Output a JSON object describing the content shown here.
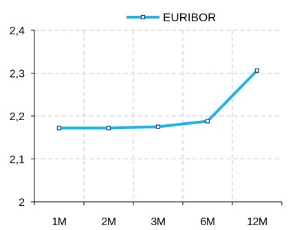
{
  "chart_data": {
    "type": "line",
    "categories": [
      "1M",
      "2M",
      "3M",
      "6M",
      "12M"
    ],
    "series": [
      {
        "name": "EURIBOR",
        "values": [
          2.172,
          2.172,
          2.175,
          2.188,
          2.306
        ],
        "color": "#17b5e6"
      }
    ],
    "ylim": [
      2,
      2.4
    ],
    "yticks": [
      "2",
      "2,1",
      "2,2",
      "2,3",
      "2,4"
    ],
    "grid": true,
    "legend_position": "top-right"
  }
}
